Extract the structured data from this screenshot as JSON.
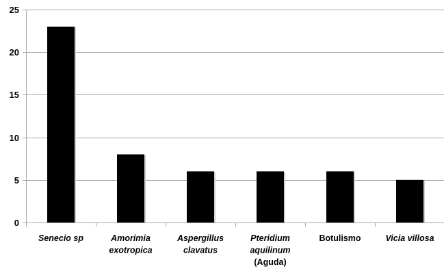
{
  "chart_data": {
    "type": "bar",
    "title": "",
    "xlabel": "",
    "ylabel": "",
    "categories": [
      {
        "lines": [
          "Senecio sp"
        ],
        "italic": true
      },
      {
        "lines": [
          "Amorimia",
          "exotropica"
        ],
        "italic": true
      },
      {
        "lines": [
          "Aspergillus",
          "clavatus"
        ],
        "italic": true
      },
      {
        "lines": [
          "Pteridium",
          "aquilinum",
          "(Aguda)"
        ],
        "italic": [
          true,
          true,
          false
        ]
      },
      {
        "lines": [
          "Botulismo"
        ],
        "italic": false
      },
      {
        "lines": [
          "Vicia villosa"
        ],
        "italic": true
      }
    ],
    "values": [
      23,
      8,
      6,
      6,
      6,
      5
    ],
    "ylim": [
      0,
      25
    ],
    "yticks": [
      0,
      5,
      10,
      15,
      20,
      25
    ],
    "grid": true,
    "bar_color": "#000000",
    "grid_color": "#a6a6a6"
  }
}
